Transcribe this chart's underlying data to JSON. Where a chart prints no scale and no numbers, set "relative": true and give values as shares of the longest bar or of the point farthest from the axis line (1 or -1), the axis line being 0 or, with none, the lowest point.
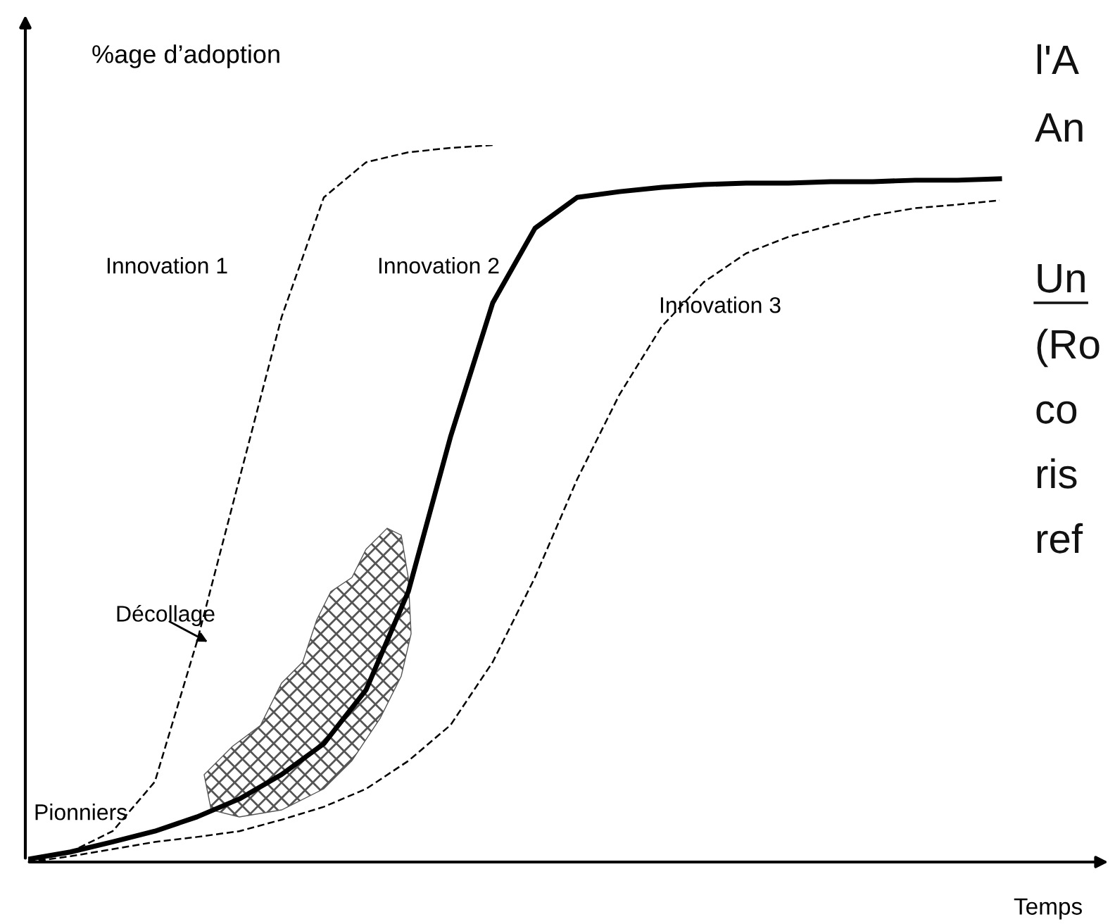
{
  "chart_data": {
    "type": "line",
    "relative": true,
    "xlabel": "Temps",
    "ylabel": "%age d’adoption",
    "tick_labels": false,
    "grid": false,
    "categories": [
      null,
      null,
      null,
      null,
      null,
      null,
      null,
      null,
      null,
      null,
      null,
      null,
      null,
      null,
      null,
      null,
      null,
      null,
      null,
      null,
      null,
      null,
      null,
      null,
      null
    ],
    "series": [
      {
        "name": "Innovation 1",
        "color": "#000000",
        "line_style": "dashed",
        "values": [
          0,
          0.014,
          0.043,
          0.112,
          0.308,
          0.534,
          0.76,
          0.927,
          0.976,
          0.99,
          0.996,
          1,
          null,
          null,
          null,
          null,
          null,
          null,
          null,
          null,
          null,
          null,
          null,
          null,
          null
        ]
      },
      {
        "name": "Innovation 2",
        "color": "#000000",
        "line_style": "solid",
        "values": [
          0.004,
          0.014,
          0.028,
          0.043,
          0.063,
          0.088,
          0.122,
          0.165,
          0.24,
          0.377,
          0.593,
          0.78,
          0.884,
          0.927,
          0.935,
          0.941,
          0.945,
          0.947,
          0.947,
          0.949,
          0.949,
          0.951,
          0.951,
          0.953,
          null
        ]
      },
      {
        "name": "Innovation 3",
        "color": "#000000",
        "line_style": "dashed",
        "values": [
          0,
          0.008,
          0.018,
          0.028,
          0.035,
          0.043,
          0.059,
          0.077,
          0.102,
          0.141,
          0.191,
          0.279,
          0.397,
          0.534,
          0.652,
          0.747,
          0.809,
          0.849,
          0.872,
          0.888,
          0.902,
          0.912,
          0.917,
          0.923,
          null
        ]
      }
    ],
    "annotations": [
      "Décollage",
      "Pionniers",
      "l'A",
      "An",
      "Un",
      "(Ro",
      "co",
      "ris",
      "ref"
    ]
  }
}
